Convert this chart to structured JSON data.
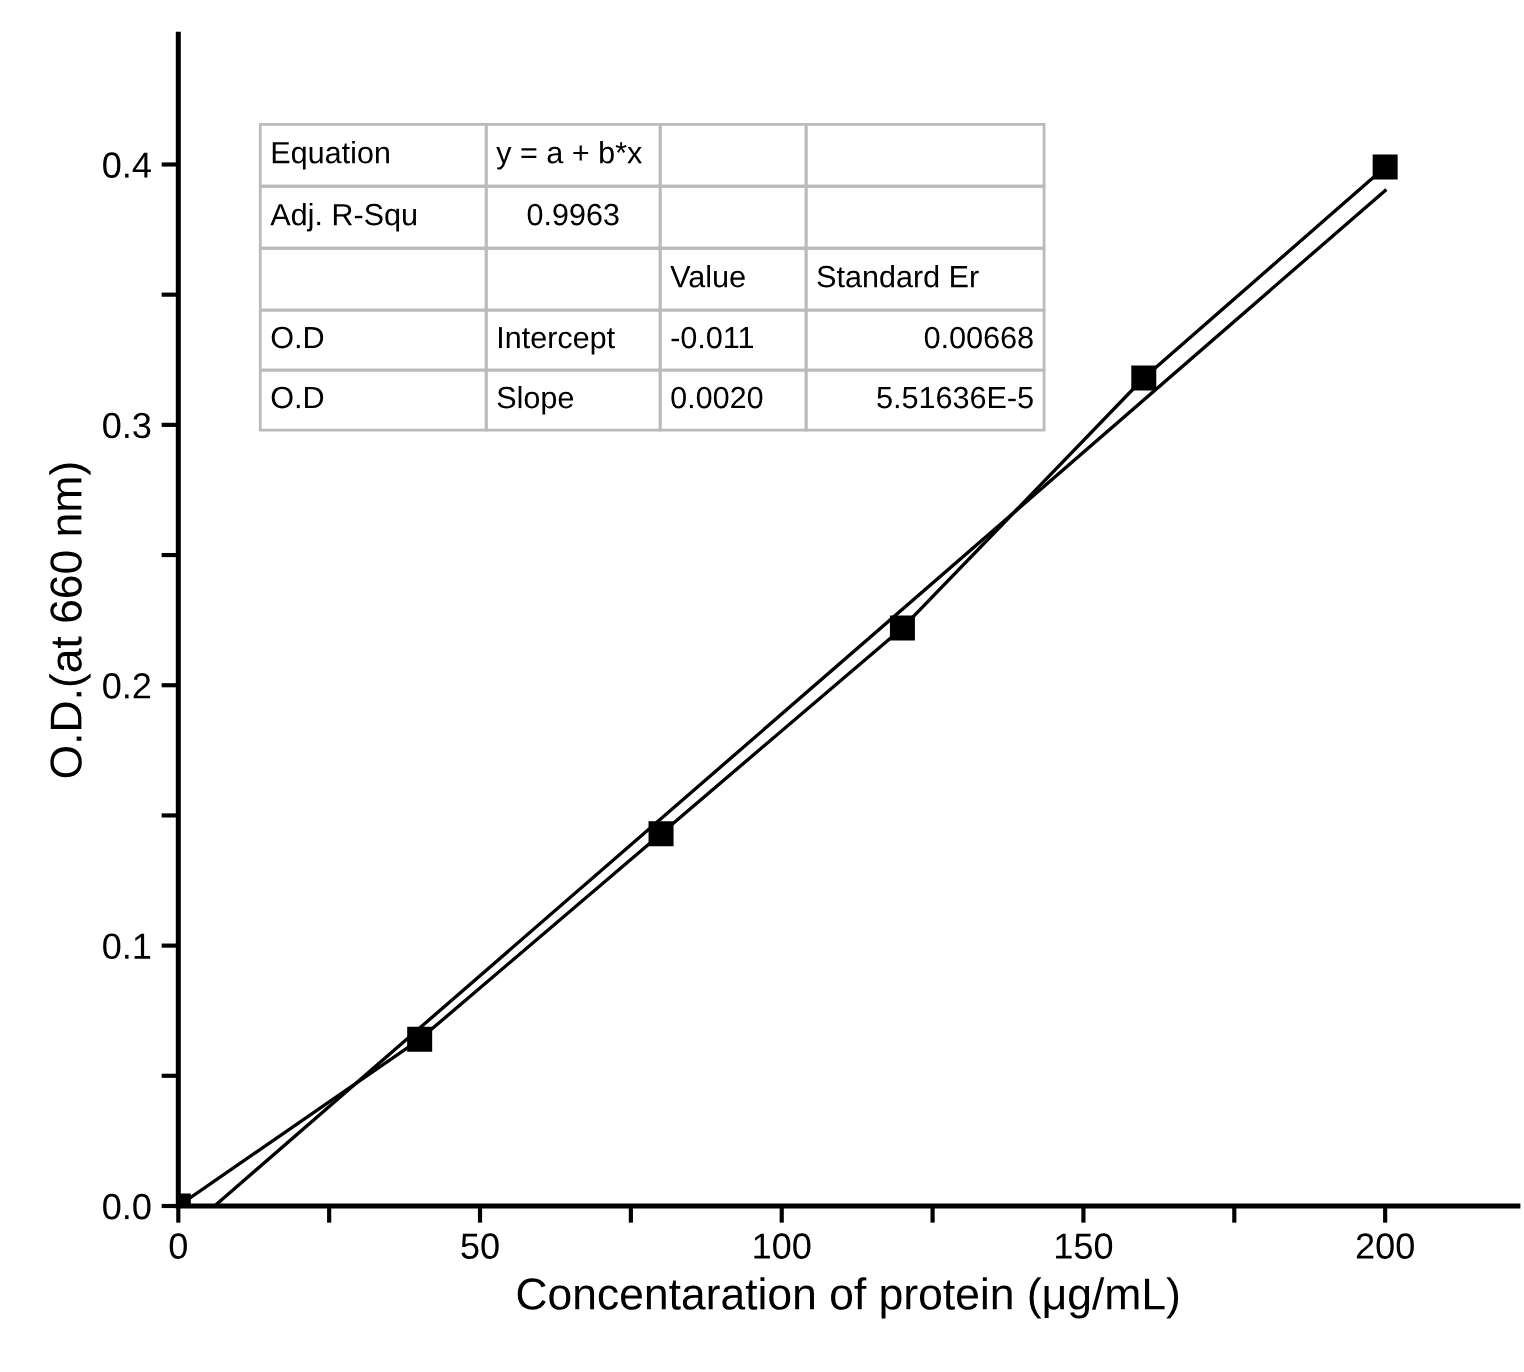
{
  "chart_data": {
    "type": "line",
    "xlabel": "Concentaration of protein (μg/mL)",
    "ylabel": "O.D.(at 660 nm)",
    "xlim": [
      0,
      222
    ],
    "ylim": [
      0,
      0.45
    ],
    "xticks": [
      0,
      {
        "value": 25,
        "label": null
      },
      50,
      {
        "value": 75,
        "label": null
      },
      100,
      {
        "value": 125,
        "label": null
      },
      150,
      {
        "value": 175,
        "label": null
      },
      200
    ],
    "yticks": [
      {
        "value": 0,
        "label": "0.0"
      },
      {
        "value": 0.05,
        "label": null
      },
      0.1,
      {
        "value": 0.15,
        "label": null
      },
      0.2,
      {
        "value": 0.25,
        "label": null
      },
      0.3,
      {
        "value": 0.35,
        "label": null
      },
      0.4
    ],
    "grid": false,
    "legend": false,
    "series": [
      {
        "color": "#000000",
        "marker": "square",
        "line_style": "solid",
        "x": [
          0,
          40,
          80,
          120,
          160,
          200
        ],
        "values": [
          0,
          0.064,
          0.143,
          0.222,
          0.318,
          0.399
        ]
      },
      {
        "color": "#000000",
        "marker": "none",
        "line_style": "solid",
        "x": [
          6,
          200
        ],
        "values": [
          0,
          0.39
        ]
      }
    ],
    "annotations": [
      "Equation",
      "y = a + b*x",
      "Adj. R-Squ",
      "0.9963",
      "Value",
      "Standard Er",
      "O.D",
      "Intercept",
      "-0.011",
      "0.00668",
      "O.D",
      "Slope",
      "0.0020",
      "5.51636E-5"
    ]
  }
}
